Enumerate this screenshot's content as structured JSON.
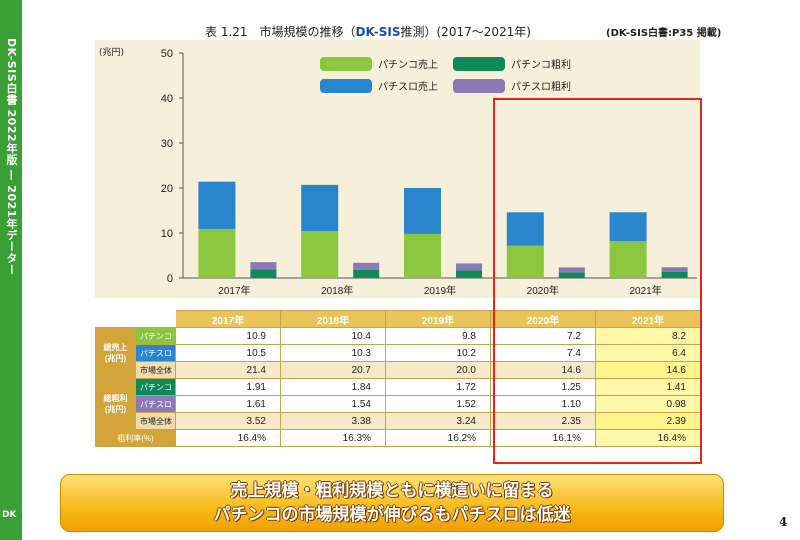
{
  "sidebar": {
    "text": "DK-SIS白書 2022年版 — 2021年データー",
    "logo": "DK"
  },
  "header": {
    "title_prefix": "表 1.21　市場規模の推移（",
    "title_brand": "DK-SIS",
    "title_suffix": "推測）(2017～2021年)",
    "source": "(DK-SIS白書:P35 掲載)"
  },
  "chart_data": {
    "type": "bar",
    "title": "表 1.21　市場規模の推移（DK-SIS推測）(2017～2021年)",
    "ylabel": "(兆円)",
    "ylim": [
      0,
      50
    ],
    "yticks": [
      "0",
      "10",
      "20",
      "30",
      "40",
      "50"
    ],
    "categories": [
      "2017年",
      "2018年",
      "2019年",
      "2020年",
      "2021年"
    ],
    "stacks": [
      {
        "stack": "sales",
        "series": [
          {
            "name": "パチンコ売上",
            "values": [
              10.9,
              10.4,
              9.8,
              7.2,
              8.2
            ],
            "color": "#8cc63f"
          },
          {
            "name": "パチスロ売上",
            "values": [
              10.5,
              10.3,
              10.2,
              7.4,
              6.4
            ],
            "color": "#2a86cc"
          }
        ]
      },
      {
        "stack": "profit",
        "series": [
          {
            "name": "パチンコ粗利",
            "values": [
              1.91,
              1.84,
              1.72,
              1.25,
              1.41
            ],
            "color": "#0e8a58"
          },
          {
            "name": "パチスロ粗利",
            "values": [
              1.61,
              1.54,
              1.52,
              1.1,
              0.98
            ],
            "color": "#8b79b8"
          }
        ]
      }
    ],
    "legend": [
      "パチンコ売上",
      "パチンコ粗利",
      "パチスロ売上",
      "パチスロ粗利"
    ],
    "legend_position": "top-right",
    "grid": false
  },
  "table": {
    "years": [
      "2017年",
      "2018年",
      "2019年",
      "2020年",
      "2021年"
    ],
    "sales_group": "総売上\n(兆円)",
    "profit_group": "総粗利\n(兆円)",
    "rows": [
      {
        "label": "パチンコ",
        "values": [
          "10.9",
          "10.4",
          "9.8",
          "7.2",
          "8.2"
        ]
      },
      {
        "label": "パチスロ",
        "values": [
          "10.5",
          "10.3",
          "10.2",
          "7.4",
          "6.4"
        ]
      },
      {
        "label": "市場全体",
        "values": [
          "21.4",
          "20.7",
          "20.0",
          "14.6",
          "14.6"
        ]
      },
      {
        "label": "パチンコ",
        "values": [
          "1.91",
          "1.84",
          "1.72",
          "1.25",
          "1.41"
        ]
      },
      {
        "label": "パチスロ",
        "values": [
          "1.61",
          "1.54",
          "1.52",
          "1.10",
          "0.98"
        ]
      },
      {
        "label": "市場全体",
        "values": [
          "3.52",
          "3.38",
          "3.24",
          "2.35",
          "2.39"
        ]
      }
    ],
    "margin_label": "粗利率(%)",
    "margin_values": [
      "16.4%",
      "16.3%",
      "16.2%",
      "16.1%",
      "16.4%"
    ]
  },
  "banner": {
    "line1": "売上規模・粗利規模ともに横這いに留まる",
    "line2": "パチンコの市場規模が伸びるもパチスロは低迷"
  },
  "page_number": "4"
}
